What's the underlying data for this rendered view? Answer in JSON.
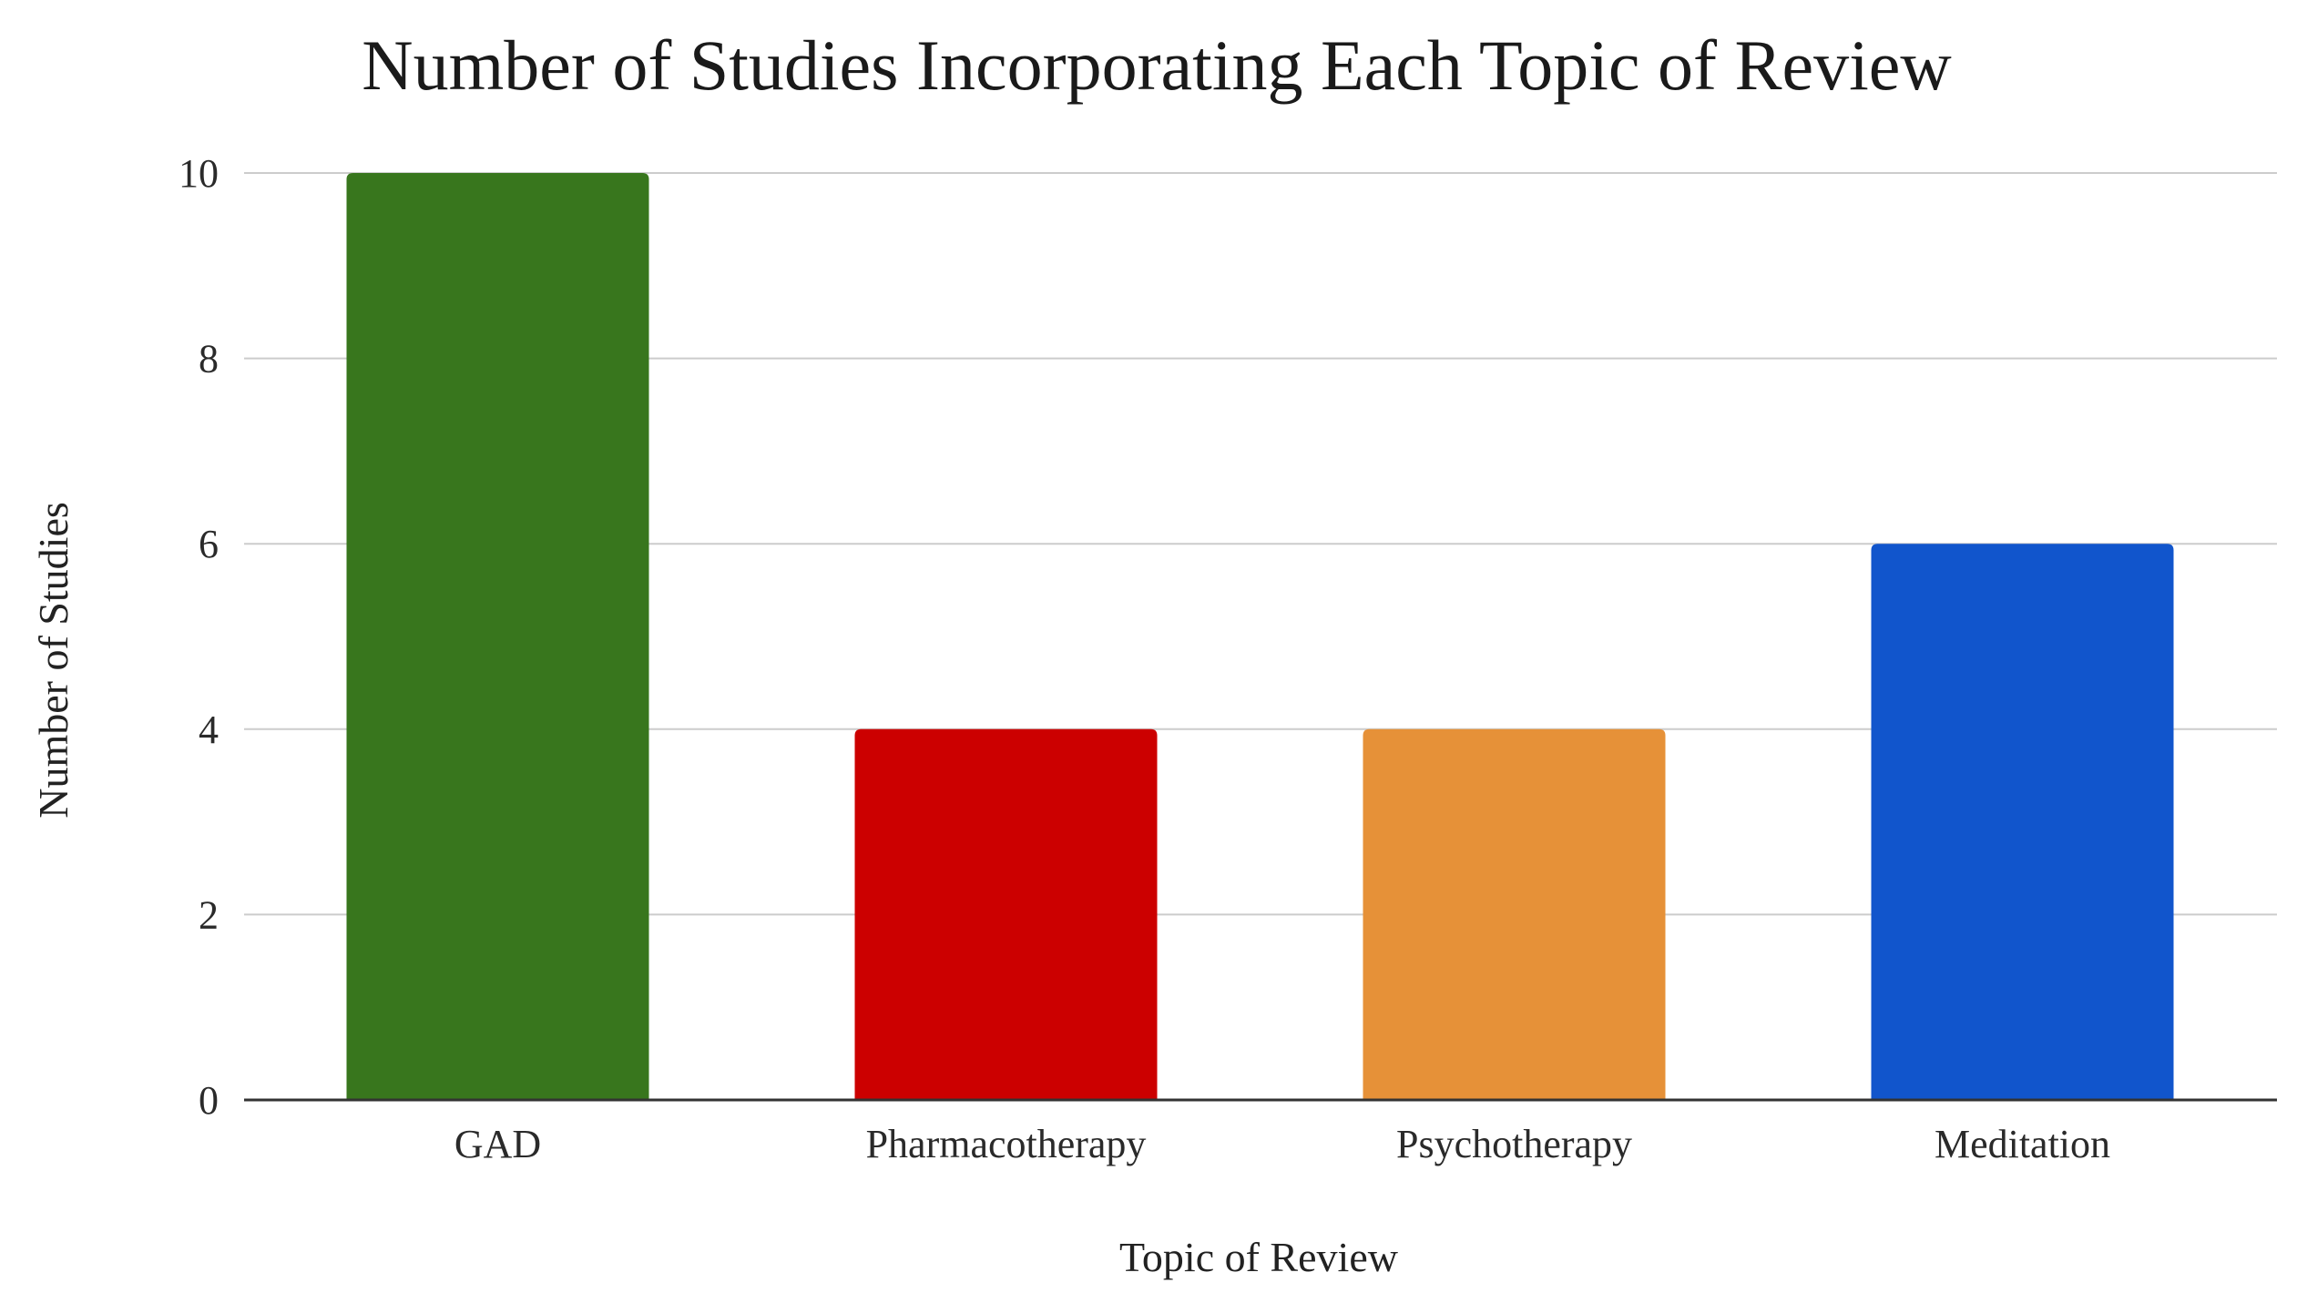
{
  "chart_data": {
    "type": "bar",
    "title": "Number of Studies Incorporating Each Topic of Review",
    "xlabel": "Topic of Review",
    "ylabel": "Number of Studies",
    "categories": [
      "GAD",
      "Pharmacotherapy",
      "Psychotherapy",
      "Meditation"
    ],
    "values": [
      10,
      4,
      4,
      6
    ],
    "colors": [
      "#38761d",
      "#cc0000",
      "#e69138",
      "#1155cc"
    ],
    "ylim": [
      0,
      10
    ],
    "yticks": [
      0,
      2,
      4,
      6,
      8,
      10
    ],
    "grid": true,
    "legend": "none"
  },
  "style": {
    "grid_color": "#cccccc",
    "axis_color": "#333333"
  }
}
